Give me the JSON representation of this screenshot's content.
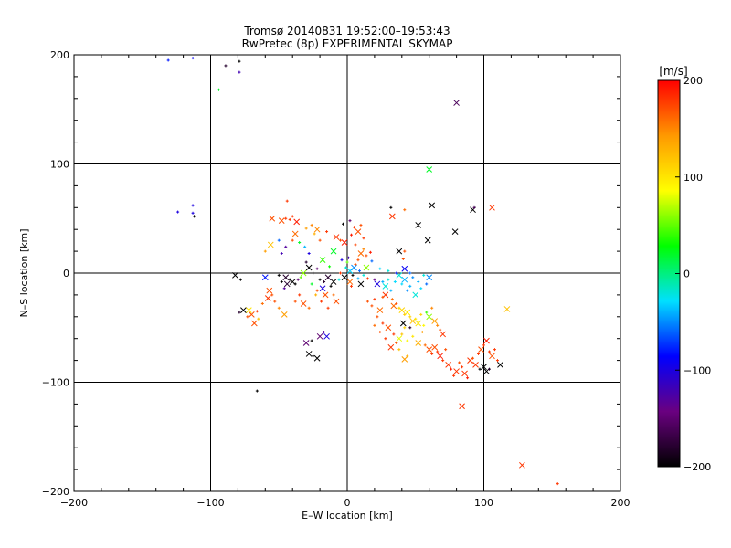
{
  "chart_data": {
    "type": "scatter",
    "title": "Tromsø 20140831 19:52:00–19:53:43",
    "subtitle": "RwPretec (8p) EXPERIMENTAL SKYMAP",
    "xlabel": "E–W location [km]",
    "ylabel": "N–S location [km]",
    "xlim": [
      -200,
      200
    ],
    "ylim": [
      -200,
      200
    ],
    "xticks": [
      "−200",
      "−100",
      "0",
      "100",
      "200"
    ],
    "yticks": [
      "200",
      "100",
      "0",
      "−100",
      "−200"
    ],
    "grid": true,
    "colorbar": {
      "label": "[m/s]",
      "range": [
        -200,
        200
      ],
      "ticks": [
        "200",
        "100",
        "0",
        "−100",
        "−200"
      ],
      "colormap": [
        "#000000",
        "#6a0080",
        "#0000ff",
        "#00e0ff",
        "#00ff00",
        "#ffff00",
        "#ff9900",
        "#ff0000"
      ]
    },
    "markers": [
      "plus",
      "cross"
    ],
    "points": [
      [
        -131,
        195,
        -80,
        0
      ],
      [
        -113,
        197,
        -90,
        0
      ],
      [
        -89,
        190,
        -180,
        0
      ],
      [
        -79,
        194,
        -200,
        0
      ],
      [
        -79,
        184,
        -120,
        0
      ],
      [
        -94,
        168,
        20,
        0
      ],
      [
        80,
        156,
        -160,
        1
      ],
      [
        60,
        95,
        20,
        1
      ],
      [
        -124,
        56,
        -100,
        0
      ],
      [
        -113,
        62,
        -100,
        0
      ],
      [
        -113,
        55,
        -100,
        0
      ],
      [
        -112,
        52,
        -200,
        0
      ],
      [
        -45,
        50,
        180,
        0
      ],
      [
        -48,
        48,
        170,
        1
      ],
      [
        -42,
        49,
        180,
        0
      ],
      [
        -37,
        47,
        190,
        1
      ],
      [
        -55,
        50,
        170,
        1
      ],
      [
        -40,
        52,
        180,
        0
      ],
      [
        -44,
        66,
        180,
        0
      ],
      [
        -26,
        44,
        150,
        0
      ],
      [
        -22,
        40,
        150,
        1
      ],
      [
        -30,
        41,
        140,
        0
      ],
      [
        -24,
        36,
        130,
        0
      ],
      [
        -20,
        30,
        170,
        0
      ],
      [
        -15,
        38,
        180,
        0
      ],
      [
        -8,
        33,
        180,
        1
      ],
      [
        -5,
        30,
        170,
        0
      ],
      [
        -2,
        28,
        190,
        1
      ],
      [
        3,
        35,
        190,
        0
      ],
      [
        5,
        42,
        180,
        0
      ],
      [
        8,
        38,
        170,
        1
      ],
      [
        10,
        44,
        170,
        0
      ],
      [
        12,
        32,
        180,
        0
      ],
      [
        6,
        26,
        175,
        0
      ],
      [
        -3,
        45,
        -200,
        0
      ],
      [
        2,
        48,
        -150,
        0
      ],
      [
        12,
        22,
        150,
        0
      ],
      [
        10,
        18,
        160,
        1
      ],
      [
        14,
        16,
        170,
        0
      ],
      [
        17,
        19,
        190,
        0
      ],
      [
        18,
        11,
        -60,
        0
      ],
      [
        33,
        52,
        180,
        1
      ],
      [
        32,
        60,
        -200,
        0
      ],
      [
        38,
        20,
        -200,
        1
      ],
      [
        41,
        13,
        170,
        0
      ],
      [
        42,
        20,
        170,
        0
      ],
      [
        52,
        44,
        -200,
        1
      ],
      [
        42,
        58,
        160,
        0
      ],
      [
        62,
        62,
        -200,
        1
      ],
      [
        59,
        30,
        -200,
        1
      ],
      [
        79,
        38,
        -200,
        1
      ],
      [
        92,
        58,
        -200,
        1
      ],
      [
        93,
        60,
        -160,
        0
      ],
      [
        106,
        60,
        180,
        1
      ],
      [
        -1,
        5,
        -20,
        0
      ],
      [
        2,
        2,
        -30,
        1
      ],
      [
        4,
        -2,
        -200,
        0
      ],
      [
        5,
        5,
        -50,
        1
      ],
      [
        8,
        -5,
        -40,
        0
      ],
      [
        6,
        8,
        170,
        0
      ],
      [
        2,
        -8,
        160,
        1
      ],
      [
        -2,
        -4,
        -200,
        1
      ],
      [
        9,
        2,
        -60,
        0
      ],
      [
        0,
        10,
        50,
        0
      ],
      [
        -5,
        0,
        180,
        0
      ],
      [
        3,
        -12,
        180,
        0
      ],
      [
        10,
        -10,
        -200,
        1
      ],
      [
        12,
        -2,
        -20,
        0
      ],
      [
        14,
        5,
        60,
        1
      ],
      [
        -6,
        -6,
        -20,
        0
      ],
      [
        1,
        14,
        -120,
        0
      ],
      [
        -4,
        12,
        -100,
        0
      ],
      [
        8,
        12,
        170,
        0
      ],
      [
        15,
        -5,
        180,
        0
      ],
      [
        -10,
        -8,
        -200,
        1
      ],
      [
        -12,
        -12,
        -200,
        0
      ],
      [
        -14,
        -4,
        -180,
        1
      ],
      [
        -17,
        -8,
        -180,
        0
      ],
      [
        -18,
        -14,
        -100,
        1
      ],
      [
        -20,
        -6,
        -200,
        0
      ],
      [
        -22,
        -16,
        170,
        0
      ],
      [
        -16,
        -20,
        170,
        1
      ],
      [
        -19,
        -26,
        180,
        0
      ],
      [
        -14,
        -32,
        180,
        0
      ],
      [
        -10,
        -20,
        160,
        0
      ],
      [
        -8,
        -26,
        170,
        1
      ],
      [
        -28,
        5,
        -200,
        1
      ],
      [
        -30,
        10,
        -180,
        0
      ],
      [
        -25,
        0,
        -200,
        0
      ],
      [
        -22,
        4,
        -150,
        0
      ],
      [
        -32,
        0,
        60,
        1
      ],
      [
        -34,
        -4,
        50,
        0
      ],
      [
        -26,
        -10,
        20,
        0
      ],
      [
        -23,
        -20,
        130,
        0
      ],
      [
        -18,
        12,
        40,
        1
      ],
      [
        -13,
        6,
        30,
        0
      ],
      [
        -10,
        20,
        20,
        1
      ],
      [
        -35,
        28,
        20,
        0
      ],
      [
        -31,
        24,
        -40,
        0
      ],
      [
        -28,
        18,
        -100,
        0
      ],
      [
        -45,
        -4,
        -180,
        1
      ],
      [
        -42,
        -6,
        -200,
        0
      ],
      [
        -40,
        -8,
        -200,
        1
      ],
      [
        -38,
        -10,
        -200,
        0
      ],
      [
        -48,
        -8,
        -200,
        0
      ],
      [
        -44,
        -10,
        -180,
        1
      ],
      [
        -36,
        -6,
        -150,
        0
      ],
      [
        -50,
        -2,
        -200,
        0
      ],
      [
        -46,
        -14,
        -130,
        0
      ],
      [
        -60,
        -4,
        -80,
        1
      ],
      [
        -57,
        -16,
        170,
        1
      ],
      [
        -55,
        -20,
        170,
        0
      ],
      [
        -58,
        -23,
        180,
        1
      ],
      [
        -53,
        -26,
        170,
        0
      ],
      [
        -62,
        -28,
        160,
        0
      ],
      [
        -66,
        -35,
        180,
        0
      ],
      [
        -70,
        -38,
        170,
        1
      ],
      [
        -73,
        -40,
        170,
        0
      ],
      [
        -68,
        -46,
        170,
        1
      ],
      [
        -65,
        -42,
        120,
        0
      ],
      [
        -72,
        -34,
        100,
        1
      ],
      [
        -76,
        -34,
        -200,
        1
      ],
      [
        -79,
        -36,
        -180,
        0
      ],
      [
        -82,
        -2,
        -200,
        1
      ],
      [
        -78,
        -6,
        -200,
        0
      ],
      [
        -46,
        -38,
        140,
        1
      ],
      [
        -50,
        -32,
        150,
        0
      ],
      [
        -66,
        -108,
        -200,
        0
      ],
      [
        -60,
        20,
        140,
        0
      ],
      [
        -56,
        26,
        120,
        1
      ],
      [
        -50,
        30,
        -60,
        0
      ],
      [
        -48,
        18,
        -120,
        0
      ],
      [
        -45,
        24,
        -130,
        0
      ],
      [
        -40,
        30,
        170,
        0
      ],
      [
        -38,
        36,
        160,
        1
      ],
      [
        -30,
        -64,
        -150,
        1
      ],
      [
        -28,
        -74,
        -200,
        1
      ],
      [
        -25,
        -76,
        -200,
        0
      ],
      [
        -22,
        -78,
        -200,
        1
      ],
      [
        -20,
        -58,
        -150,
        1
      ],
      [
        -17,
        -54,
        -130,
        0
      ],
      [
        -15,
        -58,
        -100,
        1
      ],
      [
        -26,
        -62,
        -200,
        0
      ],
      [
        20,
        -6,
        -140,
        0
      ],
      [
        22,
        -10,
        -100,
        1
      ],
      [
        26,
        -8,
        -40,
        0
      ],
      [
        28,
        -12,
        -20,
        1
      ],
      [
        30,
        -6,
        -20,
        0
      ],
      [
        32,
        -16,
        -40,
        0
      ],
      [
        35,
        -8,
        -30,
        0
      ],
      [
        38,
        -2,
        -20,
        1
      ],
      [
        40,
        -10,
        -30,
        0
      ],
      [
        42,
        -6,
        -40,
        1
      ],
      [
        44,
        -16,
        -50,
        0
      ],
      [
        46,
        -12,
        -40,
        0
      ],
      [
        48,
        -4,
        -50,
        0
      ],
      [
        50,
        -20,
        -20,
        1
      ],
      [
        52,
        -8,
        -40,
        0
      ],
      [
        54,
        -14,
        -30,
        0
      ],
      [
        56,
        -2,
        -20,
        0
      ],
      [
        58,
        -10,
        -60,
        0
      ],
      [
        60,
        -4,
        -50,
        1
      ],
      [
        24,
        4,
        -30,
        0
      ],
      [
        30,
        2,
        -20,
        0
      ],
      [
        36,
        0,
        -80,
        0
      ],
      [
        42,
        4,
        -90,
        1
      ],
      [
        46,
        0,
        -60,
        0
      ],
      [
        28,
        -20,
        180,
        1
      ],
      [
        26,
        -22,
        170,
        0
      ],
      [
        33,
        -24,
        160,
        0
      ],
      [
        34,
        -30,
        160,
        1
      ],
      [
        36,
        -28,
        170,
        0
      ],
      [
        38,
        -32,
        110,
        0
      ],
      [
        40,
        -34,
        110,
        1
      ],
      [
        42,
        -38,
        120,
        0
      ],
      [
        44,
        -36,
        100,
        1
      ],
      [
        46,
        -40,
        110,
        0
      ],
      [
        48,
        -44,
        120,
        1
      ],
      [
        50,
        -42,
        100,
        0
      ],
      [
        52,
        -46,
        100,
        1
      ],
      [
        54,
        -38,
        110,
        0
      ],
      [
        56,
        -48,
        90,
        0
      ],
      [
        58,
        -36,
        40,
        0
      ],
      [
        60,
        -40,
        60,
        1
      ],
      [
        62,
        -32,
        150,
        0
      ],
      [
        64,
        -44,
        140,
        1
      ],
      [
        66,
        -48,
        150,
        0
      ],
      [
        68,
        -52,
        170,
        0
      ],
      [
        70,
        -56,
        180,
        1
      ],
      [
        42,
        -50,
        110,
        0
      ],
      [
        40,
        -56,
        120,
        0
      ],
      [
        38,
        -60,
        80,
        1
      ],
      [
        44,
        -62,
        90,
        0
      ],
      [
        48,
        -58,
        100,
        0
      ],
      [
        52,
        -64,
        130,
        1
      ],
      [
        55,
        -54,
        140,
        0
      ],
      [
        41,
        -46,
        -200,
        1
      ],
      [
        46,
        -50,
        -180,
        0
      ],
      [
        57,
        -66,
        160,
        0
      ],
      [
        60,
        -70,
        170,
        1
      ],
      [
        62,
        -74,
        180,
        0
      ],
      [
        64,
        -68,
        170,
        1
      ],
      [
        66,
        -72,
        180,
        0
      ],
      [
        68,
        -76,
        190,
        1
      ],
      [
        70,
        -80,
        180,
        0
      ],
      [
        72,
        -70,
        170,
        0
      ],
      [
        74,
        -84,
        180,
        1
      ],
      [
        76,
        -88,
        190,
        0
      ],
      [
        78,
        -94,
        180,
        0
      ],
      [
        80,
        -90,
        180,
        1
      ],
      [
        82,
        -82,
        170,
        0
      ],
      [
        84,
        -86,
        180,
        0
      ],
      [
        86,
        -92,
        180,
        1
      ],
      [
        88,
        -96,
        190,
        0
      ],
      [
        90,
        -80,
        180,
        1
      ],
      [
        92,
        -78,
        170,
        0
      ],
      [
        94,
        -84,
        180,
        1
      ],
      [
        96,
        -74,
        180,
        0
      ],
      [
        98,
        -70,
        170,
        1
      ],
      [
        100,
        -66,
        180,
        0
      ],
      [
        102,
        -62,
        190,
        1
      ],
      [
        104,
        -72,
        180,
        0
      ],
      [
        106,
        -76,
        170,
        1
      ],
      [
        108,
        -70,
        180,
        0
      ],
      [
        110,
        -80,
        180,
        0
      ],
      [
        100,
        -86,
        -200,
        1
      ],
      [
        102,
        -90,
        -200,
        1
      ],
      [
        104,
        -88,
        -180,
        0
      ],
      [
        84,
        -122,
        180,
        1
      ],
      [
        112,
        -84,
        -200,
        1
      ],
      [
        97,
        -88,
        -200,
        0
      ],
      [
        42,
        -79,
        140,
        1
      ],
      [
        44,
        -76,
        130,
        0
      ],
      [
        38,
        -70,
        120,
        0
      ],
      [
        18,
        -30,
        170,
        0
      ],
      [
        20,
        -24,
        180,
        0
      ],
      [
        24,
        -34,
        160,
        1
      ],
      [
        22,
        -40,
        170,
        0
      ],
      [
        15,
        -26,
        170,
        0
      ],
      [
        26,
        -46,
        180,
        0
      ],
      [
        30,
        -50,
        170,
        1
      ],
      [
        34,
        -56,
        180,
        0
      ],
      [
        36,
        -64,
        170,
        0
      ],
      [
        32,
        -68,
        180,
        1
      ],
      [
        28,
        -60,
        180,
        0
      ],
      [
        24,
        -54,
        170,
        0
      ],
      [
        20,
        -48,
        160,
        0
      ],
      [
        -32,
        -28,
        170,
        1
      ],
      [
        -28,
        -32,
        160,
        0
      ],
      [
        -35,
        -20,
        180,
        0
      ],
      [
        -38,
        -26,
        170,
        0
      ],
      [
        128,
        -176,
        180,
        1
      ],
      [
        154,
        -193,
        180,
        0
      ],
      [
        117,
        -33,
        120,
        1
      ]
    ]
  }
}
